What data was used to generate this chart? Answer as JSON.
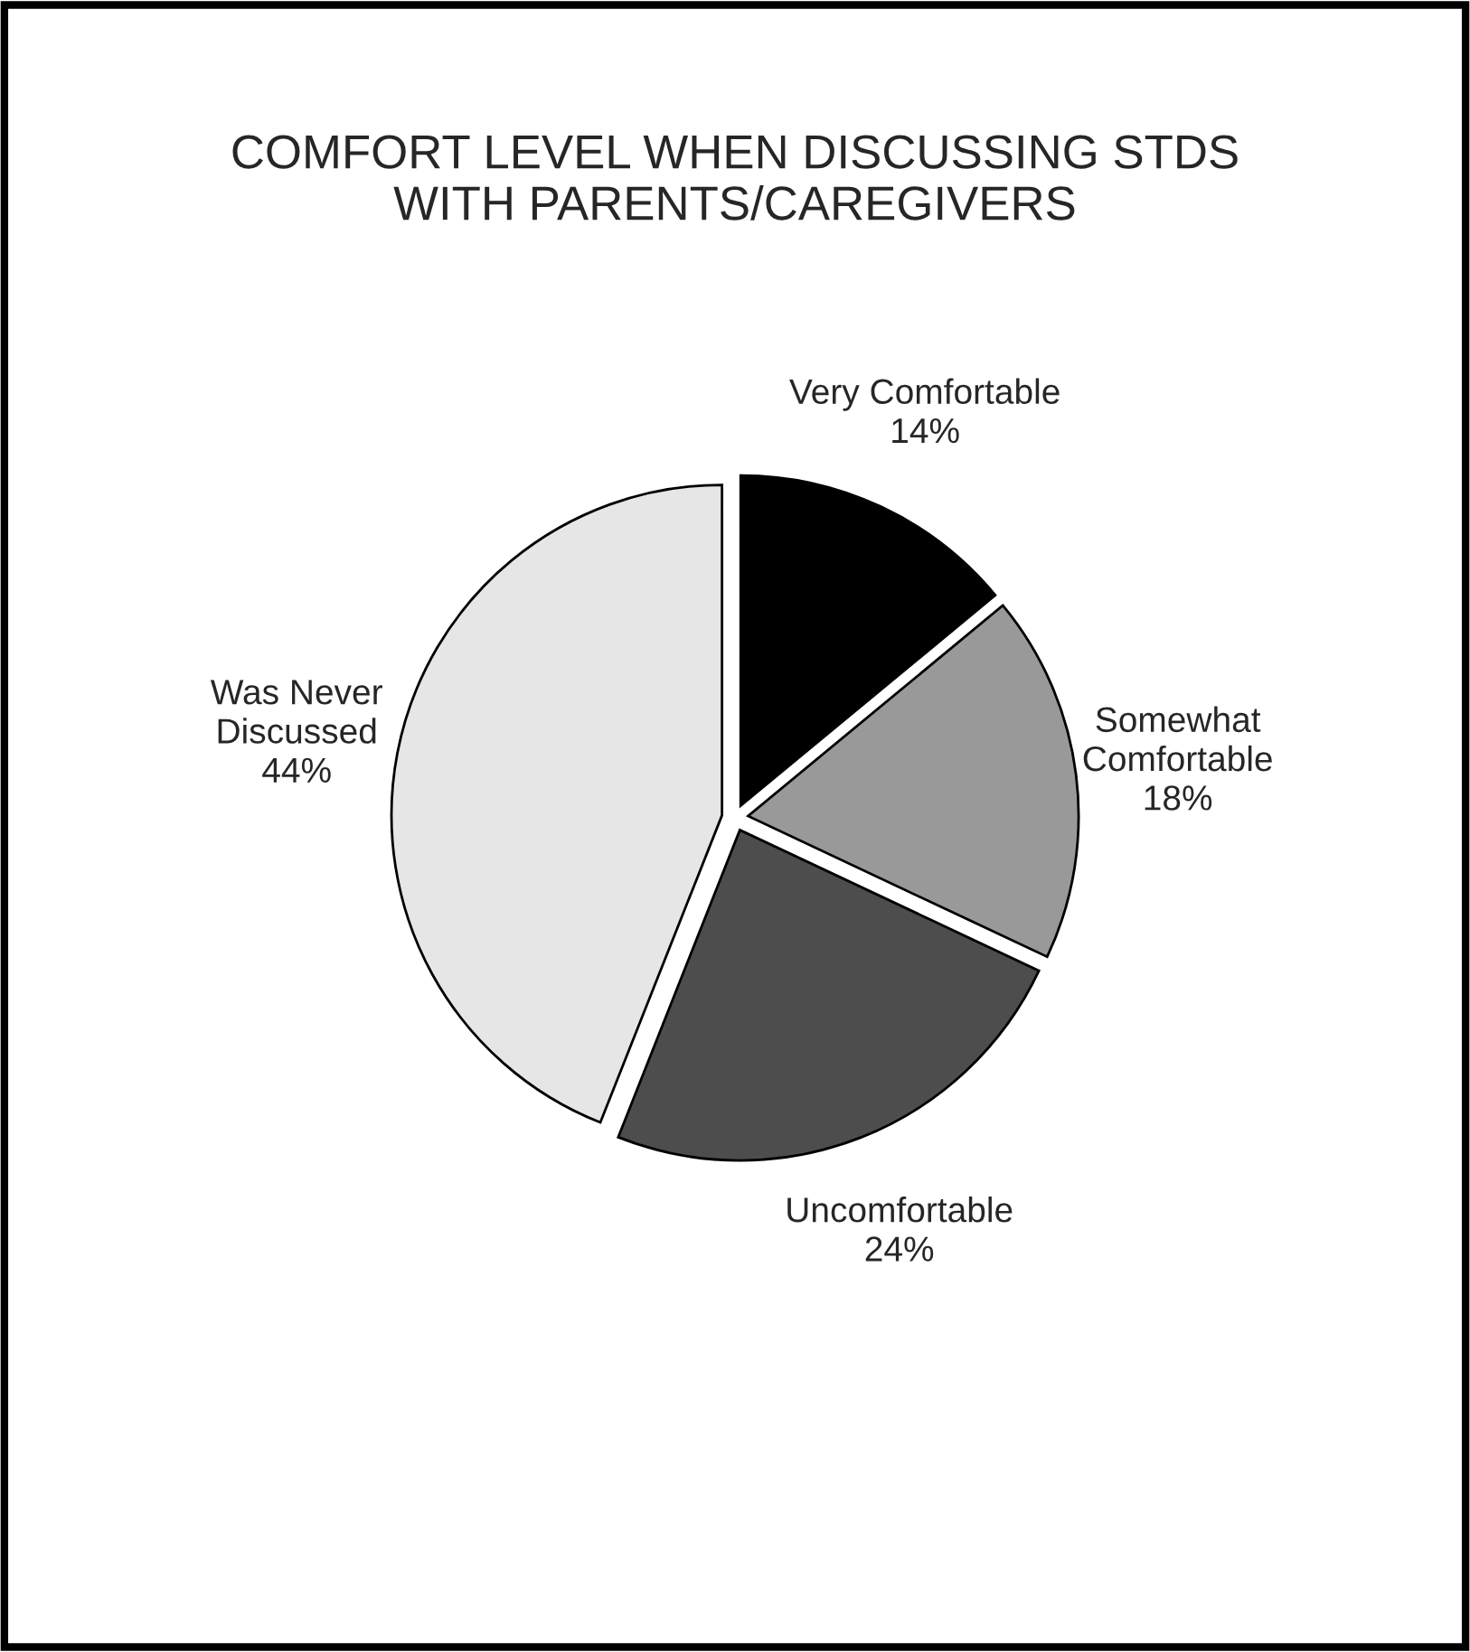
{
  "chart_data": {
    "type": "pie",
    "title": "COMFORT LEVEL WHEN DISCUSSING STDS\nWITH PARENTS/CAREGIVERS",
    "categories": [
      "Very Comfortable",
      "Somewhat\nComfortable",
      "Uncomfortable",
      "Was Never\nDiscussed"
    ],
    "values": [
      14,
      18,
      24,
      44
    ],
    "value_labels": [
      "14%",
      "18%",
      "24%",
      "44%"
    ],
    "colors": [
      "#000000",
      "#999999",
      "#4d4d4d",
      "#e6e6e6"
    ],
    "legend": false
  }
}
